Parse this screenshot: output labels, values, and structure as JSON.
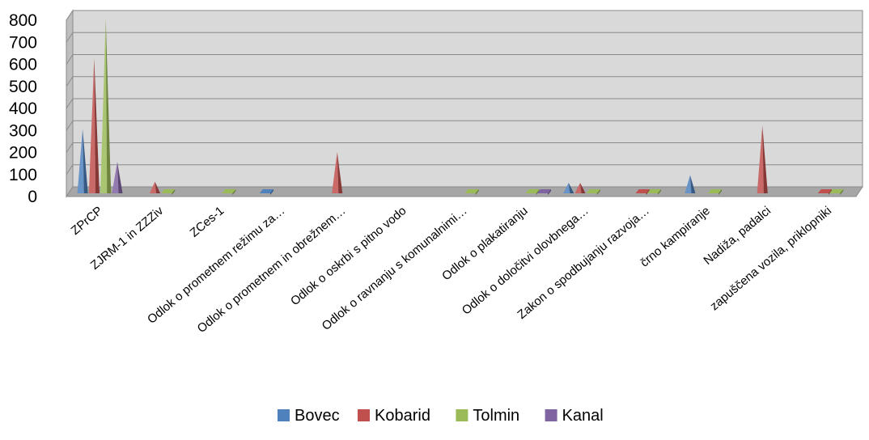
{
  "chart_data": {
    "type": "bar",
    "style": "3d-cone",
    "categories": [
      "ZPrCP",
      "ZJRM-1 in ZZZiv",
      "ZCes-1",
      "Odlok o prometnem režimu za…",
      "Odlok o prometnem in obrežnem…",
      "Odlok o oskrbi s pitno vodo",
      "Odlok o ravnanju s komunalnimi…",
      "Odlok o plakatiranju",
      "Odlok o določitvi olovbnega…",
      "Zakon o spodbujanju razvoja…",
      "črno kampiranje",
      "Nadiža, padalci",
      "zapuščena vozila, priklopniki"
    ],
    "series": [
      {
        "name": "Bovec",
        "color": "#4F81BD",
        "values": [
          300,
          0,
          0,
          15,
          0,
          0,
          0,
          0,
          55,
          0,
          90,
          0,
          0
        ]
      },
      {
        "name": "Kobarid",
        "color": "#C0504D",
        "values": [
          620,
          60,
          0,
          0,
          195,
          0,
          0,
          0,
          55,
          30,
          0,
          315,
          10
        ]
      },
      {
        "name": "Tolmin",
        "color": "#9BBB59",
        "values": [
          800,
          20,
          5,
          0,
          0,
          0,
          5,
          10,
          10,
          10,
          20,
          0,
          20
        ]
      },
      {
        "name": "Kanal",
        "color": "#8064A2",
        "values": [
          150,
          0,
          0,
          0,
          0,
          0,
          0,
          10,
          0,
          0,
          0,
          0,
          0
        ]
      }
    ],
    "ylim": [
      0,
      800
    ],
    "yticks": [
      "0",
      "100",
      "200",
      "300",
      "400",
      "500",
      "600",
      "700",
      "800"
    ],
    "grid": true,
    "legend_position": "bottom"
  }
}
